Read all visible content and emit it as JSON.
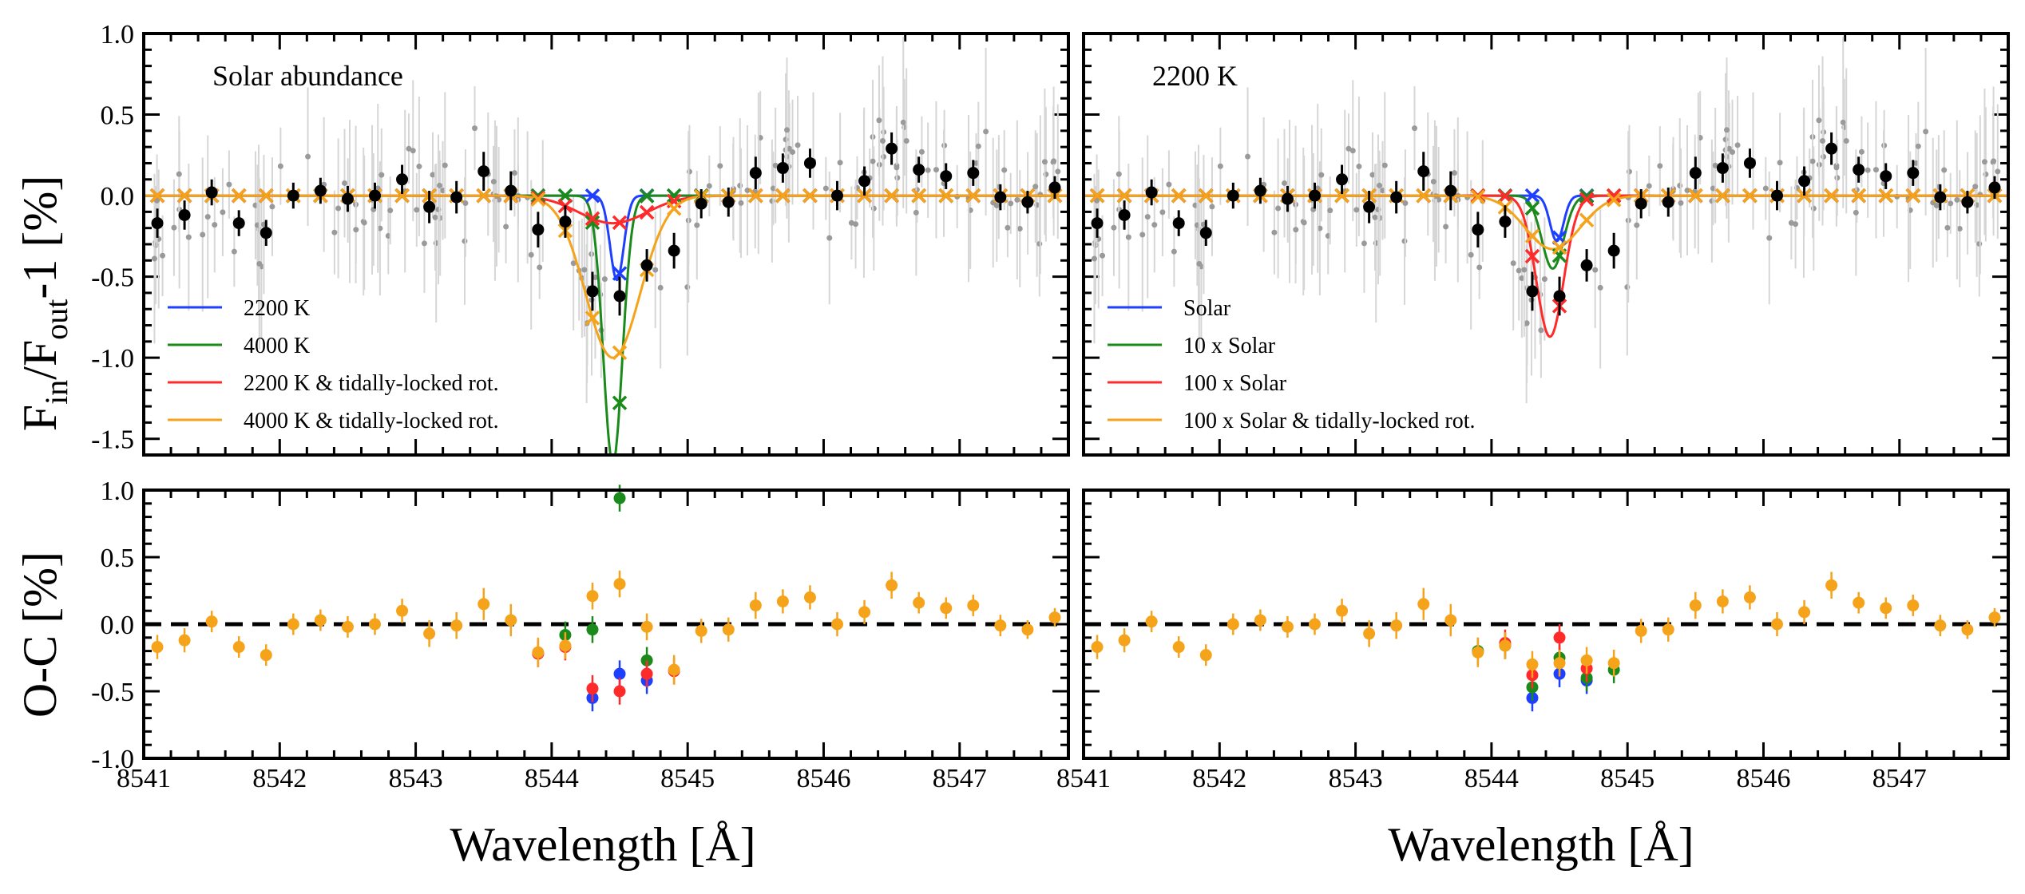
{
  "figure": {
    "ylabel_top": "F_in/F_out-1 [%]",
    "ylabel_top_parts": {
      "a": "F",
      "b": "in",
      "c": "/F",
      "d": "out",
      "e": "-1 [%]"
    },
    "ylabel_bottom": "O-C [%]",
    "xlabel": "Wavelength [Å]"
  },
  "chart_data": [
    {
      "type": "scatter",
      "panel": "top-left",
      "annotation": "Solar abundance",
      "xlim": [
        8541.0,
        8547.8
      ],
      "ylim": [
        -1.6,
        1.0
      ],
      "xticks": [
        8541,
        8542,
        8543,
        8544,
        8545,
        8546,
        8547
      ],
      "yticks": [
        1.0,
        0.5,
        0.0,
        -0.5,
        -1.0,
        -1.5
      ],
      "ytick_labels": [
        "1.0",
        "0.5",
        "0.0",
        "-0.5",
        "-1.0",
        "-1.5"
      ],
      "legend_position": "lower-left",
      "series": [
        {
          "name": "2200 K",
          "color": "#1f3fff",
          "line": {
            "depth": 0.52,
            "center": 8544.48,
            "width": 0.05
          }
        },
        {
          "name": "4000 K",
          "color": "#1a8a1a",
          "line": {
            "depth": 1.65,
            "center": 8544.45,
            "width": 0.07
          }
        },
        {
          "name": "2200 K & tidally-locked rot.",
          "color": "#ff2a2a",
          "line": {
            "depth": 0.17,
            "center": 8544.45,
            "width": 0.25
          }
        },
        {
          "name": "4000 K & tidally-locked rot.",
          "color": "#f4a31b",
          "line": {
            "depth": 1.0,
            "center": 8544.45,
            "width": 0.2
          }
        }
      ],
      "model_markers": {
        "x": [
          8541.1,
          8541.3,
          8541.5,
          8541.7,
          8541.9,
          8542.1,
          8542.3,
          8542.5,
          8542.7,
          8542.9,
          8543.1,
          8543.3,
          8543.5,
          8543.7,
          8543.9,
          8544.1,
          8544.3,
          8544.5,
          8544.7,
          8544.9,
          8545.1,
          8545.3,
          8545.5,
          8545.7,
          8545.9,
          8546.1,
          8546.3,
          8546.5,
          8546.7,
          8546.9,
          8547.1,
          8547.3,
          8547.5,
          8547.7
        ]
      }
    },
    {
      "type": "scatter",
      "panel": "top-right",
      "annotation": "2200 K",
      "xlim": [
        8541.0,
        8547.8
      ],
      "ylim": [
        -1.6,
        1.0
      ],
      "xticks": [
        8541,
        8542,
        8543,
        8544,
        8545,
        8546,
        8547
      ],
      "yticks": [
        1.0,
        0.5,
        0.0,
        -0.5,
        -1.0,
        -1.5
      ],
      "legend_position": "lower-left",
      "series": [
        {
          "name": "Solar",
          "color": "#1f3fff",
          "line": {
            "depth": 0.28,
            "center": 8544.48,
            "width": 0.05
          }
        },
        {
          "name": "10 x Solar",
          "color": "#1a8a1a",
          "line": {
            "depth": 0.45,
            "center": 8544.45,
            "width": 0.08
          }
        },
        {
          "name": "100 x Solar",
          "color": "#ff2a2a",
          "line": {
            "depth": 0.87,
            "center": 8544.43,
            "width": 0.1
          }
        },
        {
          "name": "100 x Solar & tidally-locked rot.",
          "color": "#f4a31b",
          "line": {
            "depth": 0.33,
            "center": 8544.45,
            "width": 0.2
          }
        }
      ]
    },
    {
      "type": "scatter",
      "panel": "observed-data",
      "x": [
        8541.1,
        8541.3,
        8541.5,
        8541.7,
        8541.9,
        8542.1,
        8542.3,
        8542.5,
        8542.7,
        8542.9,
        8543.1,
        8543.3,
        8543.5,
        8543.7,
        8543.9,
        8544.1,
        8544.3,
        8544.5,
        8544.7,
        8544.9,
        8545.1,
        8545.3,
        8545.5,
        8545.7,
        8545.9,
        8546.1,
        8546.3,
        8546.5,
        8546.7,
        8546.9,
        8547.1,
        8547.3,
        8547.5,
        8547.7
      ],
      "y": [
        -0.17,
        -0.12,
        0.02,
        -0.17,
        -0.23,
        0.0,
        0.03,
        -0.02,
        0.0,
        0.1,
        -0.07,
        -0.01,
        0.15,
        0.03,
        -0.21,
        -0.16,
        -0.59,
        -0.62,
        -0.43,
        -0.34,
        -0.05,
        -0.04,
        0.14,
        0.17,
        0.2,
        0.0,
        0.09,
        0.29,
        0.16,
        0.12,
        0.14,
        -0.01,
        -0.04,
        0.05
      ],
      "yerr": [
        0.09,
        0.09,
        0.08,
        0.08,
        0.08,
        0.08,
        0.08,
        0.08,
        0.08,
        0.09,
        0.1,
        0.1,
        0.12,
        0.12,
        0.11,
        0.1,
        0.12,
        0.12,
        0.1,
        0.11,
        0.09,
        0.09,
        0.1,
        0.09,
        0.09,
        0.09,
        0.09,
        0.1,
        0.08,
        0.08,
        0.08,
        0.08,
        0.07,
        0.07
      ]
    },
    {
      "type": "scatter",
      "panel": "bottom-left",
      "xlim": [
        8541.0,
        8547.8
      ],
      "ylim": [
        -1.0,
        1.0
      ],
      "xticks": [
        8541,
        8542,
        8543,
        8544,
        8545,
        8546,
        8547
      ],
      "xtick_labels": [
        "8541",
        "8542",
        "8543",
        "8544",
        "8545",
        "8546",
        "8547"
      ],
      "yticks": [
        1.0,
        0.5,
        0.0,
        -0.5,
        -1.0
      ],
      "ytick_labels": [
        "1.0",
        "0.5",
        "0.0",
        "-0.5",
        "-1.0"
      ],
      "reference_line": 0.0,
      "residual_offsets": [
        {
          "color": "#1f3fff",
          "x": [
            8544.3,
            8544.5,
            8544.7
          ],
          "y": [
            -0.55,
            -0.37,
            -0.42
          ]
        },
        {
          "color": "#1a8a1a",
          "x": [
            8544.1,
            8544.3,
            8544.5,
            8544.7
          ],
          "y": [
            -0.08,
            -0.04,
            0.94,
            -0.27
          ]
        },
        {
          "color": "#ff2a2a",
          "x": [
            8543.9,
            8544.1,
            8544.3,
            8544.5,
            8544.7,
            8544.9
          ],
          "y": [
            -0.22,
            -0.17,
            -0.48,
            -0.5,
            -0.37,
            -0.35
          ]
        },
        {
          "color": "#f4a31b",
          "x": [
            8544.3,
            8544.5,
            8544.7
          ],
          "y": [
            0.21,
            0.3,
            -0.02
          ]
        }
      ]
    },
    {
      "type": "scatter",
      "panel": "bottom-right",
      "xlim": [
        8541.0,
        8547.8
      ],
      "ylim": [
        -1.0,
        1.0
      ],
      "xticks": [
        8541,
        8542,
        8543,
        8544,
        8545,
        8546,
        8547
      ],
      "xtick_labels": [
        "8541",
        "8542",
        "8543",
        "8544",
        "8545",
        "8546",
        "8547"
      ],
      "yticks": [
        1.0,
        0.5,
        0.0,
        -0.5,
        -1.0
      ],
      "reference_line": 0.0,
      "residual_offsets": [
        {
          "color": "#1f3fff",
          "x": [
            8544.3,
            8544.5,
            8544.7
          ],
          "y": [
            -0.55,
            -0.37,
            -0.42
          ]
        },
        {
          "color": "#1a8a1a",
          "x": [
            8543.9,
            8544.1,
            8544.3,
            8544.5,
            8544.7,
            8544.9
          ],
          "y": [
            -0.2,
            -0.16,
            -0.47,
            -0.25,
            -0.4,
            -0.34
          ]
        },
        {
          "color": "#ff2a2a",
          "x": [
            8544.1,
            8544.3,
            8544.5,
            8544.7
          ],
          "y": [
            -0.14,
            -0.38,
            -0.1,
            -0.33
          ]
        },
        {
          "color": "#f4a31b",
          "x": [
            8544.3,
            8544.5,
            8544.7,
            8544.9
          ],
          "y": [
            -0.3,
            -0.29,
            -0.27,
            -0.29
          ]
        }
      ]
    }
  ]
}
